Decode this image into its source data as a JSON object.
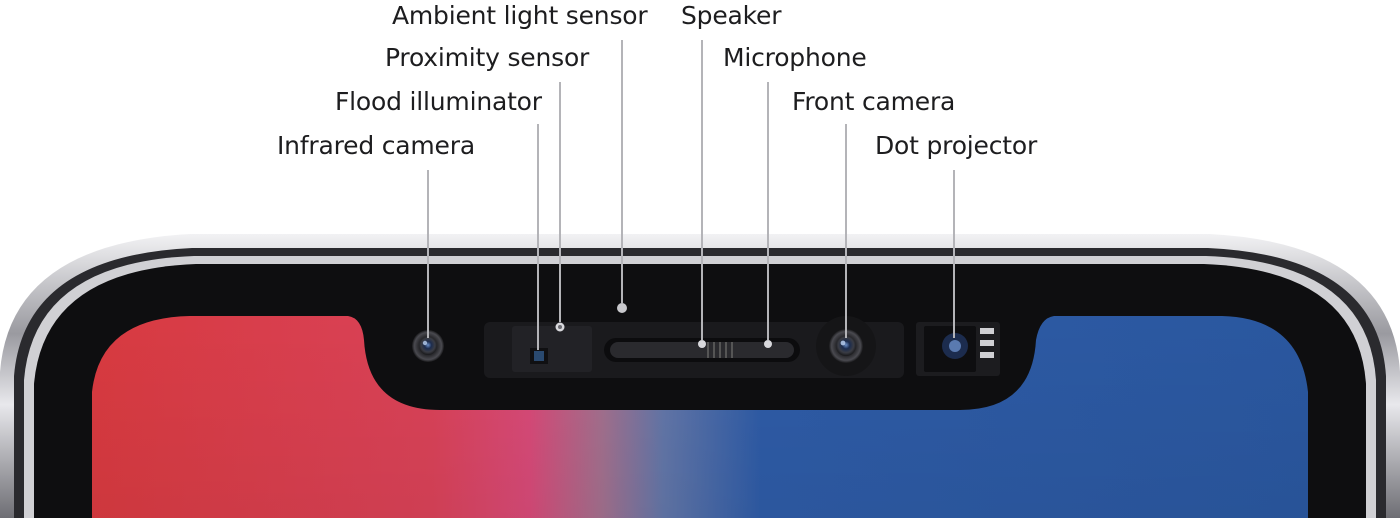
{
  "callouts": [
    {
      "id": "infrared-camera",
      "label": "Infrared camera"
    },
    {
      "id": "flood-illuminator",
      "label": "Flood illuminator"
    },
    {
      "id": "proximity-sensor",
      "label": "Proximity sensor"
    },
    {
      "id": "ambient-light-sensor",
      "label": "Ambient light sensor"
    },
    {
      "id": "speaker",
      "label": "Speaker"
    },
    {
      "id": "microphone",
      "label": "Microphone"
    },
    {
      "id": "front-camera",
      "label": "Front camera"
    },
    {
      "id": "dot-projector",
      "label": "Dot projector"
    }
  ],
  "colors": {
    "screen_left": "#d93c4a",
    "screen_mid": "#d8456c",
    "screen_right": "#2b5aa4",
    "bezel": "#101012",
    "frame": "#c8c8cc",
    "leader_line": "#b4b4b8",
    "label_text": "#1d1d1f"
  },
  "icons": [
    "camera-lens-icon",
    "sensor-dot-icon",
    "speaker-grille-icon",
    "dot-projector-icon"
  ]
}
